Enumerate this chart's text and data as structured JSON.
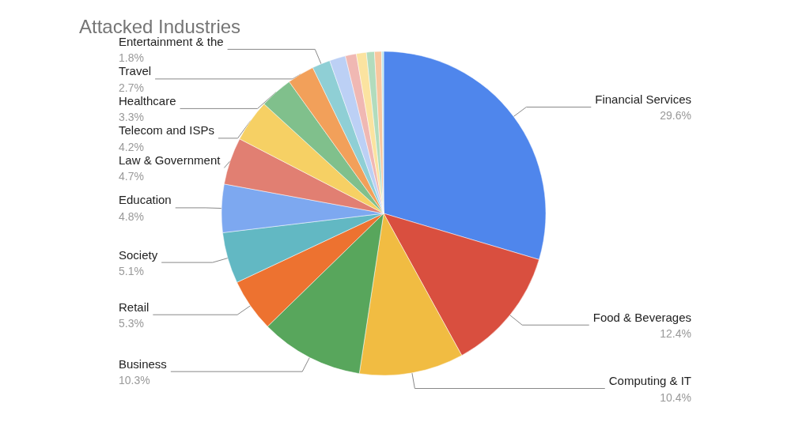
{
  "chart_data": {
    "type": "pie",
    "title": "Attacked Industries",
    "categories": [
      "Financial Services",
      "Food & Beverages",
      "Computing & IT",
      "Business",
      "Retail",
      "Society",
      "Education",
      "Law & Government",
      "Telecom and ISPs",
      "Healthcare",
      "Travel",
      "Entertainment & the",
      null,
      null,
      null,
      null,
      null,
      null
    ],
    "values": [
      29.6,
      12.4,
      10.4,
      10.3,
      5.3,
      5.1,
      4.8,
      4.7,
      4.2,
      3.3,
      2.7,
      1.8,
      1.6,
      1.1,
      1.0,
      0.8,
      0.7,
      0.2
    ],
    "value_labels": [
      "29.6%",
      "12.4%",
      "10.4%",
      "10.3%",
      "5.3%",
      "5.1%",
      "4.8%",
      "4.7%",
      "4.2%",
      "3.3%",
      "2.7%",
      "1.8%",
      null,
      null,
      null,
      null,
      null,
      null
    ],
    "colors": [
      "#4f86ec",
      "#d94f3f",
      "#f1bc42",
      "#58a65c",
      "#ed7230",
      "#62b8c3",
      "#7da8f0",
      "#e17f72",
      "#f6d064",
      "#80c08c",
      "#f2a05a",
      "#8fcfd5",
      "#bcd0f5",
      "#f0b8b3",
      "#fbe3a0",
      "#b2dcbd",
      "#f9c79e",
      "#bde6ea"
    ],
    "legend": false
  }
}
